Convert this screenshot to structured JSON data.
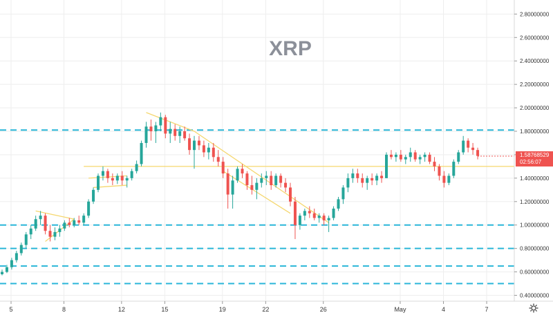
{
  "chart_data": {
    "type": "candlestick",
    "title": "XRP",
    "y_ticks": [
      "2.80000000",
      "2.60000000",
      "2.40000000",
      "2.20000000",
      "2.00000000",
      "1.80000000",
      "1.60000000",
      "1.40000000",
      "1.20000000",
      "1.00000000",
      "0.80000000",
      "0.60000000",
      "0.40000000"
    ],
    "ylim": [
      0.35,
      2.92
    ],
    "x_ticks": [
      "5",
      "8",
      "12",
      "15",
      "19",
      "22",
      "26",
      "May",
      "4",
      "7"
    ],
    "last_price": "1.58768529",
    "countdown": "02:56:07",
    "grid": true,
    "horizontal_levels": [
      1.81,
      1.0,
      0.8,
      0.65,
      0.5
    ],
    "horizontal_levels_color": "#29b6d8",
    "support_level": 1.5,
    "trendline_color": "#f5d76e",
    "up_color": "#26a69a",
    "down_color": "#ef5350",
    "price_label_color": "#ef5350",
    "series": [
      {
        "values": [
          [
            0.58,
            0.62,
            0.57,
            0.6
          ],
          [
            0.6,
            0.66,
            0.59,
            0.64
          ],
          [
            0.64,
            0.72,
            0.62,
            0.7
          ],
          [
            0.7,
            0.78,
            0.68,
            0.76
          ],
          [
            0.76,
            0.85,
            0.74,
            0.83
          ],
          [
            0.83,
            0.94,
            0.8,
            0.92
          ],
          [
            0.92,
            1.0,
            0.88,
            0.97
          ],
          [
            0.97,
            1.08,
            0.95,
            1.05
          ],
          [
            1.05,
            1.12,
            1.0,
            1.08
          ],
          [
            1.08,
            1.1,
            0.92,
            0.95
          ],
          [
            0.95,
            1.0,
            0.86,
            0.9
          ],
          [
            0.9,
            0.98,
            0.87,
            0.94
          ],
          [
            0.94,
            1.0,
            0.9,
            0.97
          ],
          [
            0.97,
            1.04,
            0.95,
            1.02
          ],
          [
            1.02,
            1.06,
            0.98,
            1.0
          ],
          [
            1.0,
            1.06,
            0.98,
            1.04
          ],
          [
            1.04,
            1.08,
            1.0,
            1.02
          ],
          [
            1.02,
            1.1,
            1.0,
            1.08
          ],
          [
            1.08,
            1.22,
            1.06,
            1.2
          ],
          [
            1.2,
            1.32,
            1.18,
            1.3
          ],
          [
            1.3,
            1.44,
            1.28,
            1.42
          ],
          [
            1.42,
            1.5,
            1.38,
            1.46
          ],
          [
            1.46,
            1.48,
            1.36,
            1.4
          ],
          [
            1.4,
            1.44,
            1.34,
            1.38
          ],
          [
            1.38,
            1.44,
            1.35,
            1.42
          ],
          [
            1.42,
            1.46,
            1.34,
            1.38
          ],
          [
            1.38,
            1.42,
            1.32,
            1.4
          ],
          [
            1.4,
            1.48,
            1.38,
            1.46
          ],
          [
            1.46,
            1.55,
            1.44,
            1.52
          ],
          [
            1.52,
            1.72,
            1.5,
            1.7
          ],
          [
            1.7,
            1.88,
            1.66,
            1.84
          ],
          [
            1.84,
            1.9,
            1.72,
            1.8
          ],
          [
            1.8,
            1.88,
            1.7,
            1.85
          ],
          [
            1.85,
            1.96,
            1.8,
            1.92
          ],
          [
            1.92,
            1.94,
            1.74,
            1.78
          ],
          [
            1.78,
            1.88,
            1.7,
            1.82
          ],
          [
            1.82,
            1.86,
            1.72,
            1.76
          ],
          [
            1.76,
            1.84,
            1.7,
            1.8
          ],
          [
            1.8,
            1.84,
            1.72,
            1.74
          ],
          [
            1.74,
            1.78,
            1.6,
            1.64
          ],
          [
            1.64,
            1.76,
            1.48,
            1.72
          ],
          [
            1.72,
            1.76,
            1.64,
            1.68
          ],
          [
            1.68,
            1.72,
            1.58,
            1.62
          ],
          [
            1.62,
            1.7,
            1.56,
            1.66
          ],
          [
            1.66,
            1.7,
            1.54,
            1.58
          ],
          [
            1.58,
            1.64,
            1.5,
            1.54
          ],
          [
            1.54,
            1.58,
            1.4,
            1.44
          ],
          [
            1.44,
            1.48,
            1.14,
            1.26
          ],
          [
            1.26,
            1.42,
            1.14,
            1.38
          ],
          [
            1.38,
            1.5,
            1.36,
            1.48
          ],
          [
            1.48,
            1.52,
            1.4,
            1.44
          ],
          [
            1.44,
            1.46,
            1.3,
            1.34
          ],
          [
            1.34,
            1.42,
            1.26,
            1.3
          ],
          [
            1.3,
            1.4,
            1.22,
            1.36
          ],
          [
            1.36,
            1.44,
            1.32,
            1.4
          ],
          [
            1.4,
            1.46,
            1.34,
            1.42
          ],
          [
            1.42,
            1.46,
            1.3,
            1.34
          ],
          [
            1.34,
            1.44,
            1.32,
            1.42
          ],
          [
            1.42,
            1.44,
            1.32,
            1.36
          ],
          [
            1.36,
            1.4,
            1.28,
            1.32
          ],
          [
            1.32,
            1.36,
            1.16,
            1.2
          ],
          [
            1.2,
            1.24,
            0.88,
            1.0
          ],
          [
            1.0,
            1.1,
            0.96,
            1.08
          ],
          [
            1.08,
            1.14,
            1.04,
            1.12
          ],
          [
            1.12,
            1.16,
            1.06,
            1.1
          ],
          [
            1.1,
            1.14,
            1.04,
            1.06
          ],
          [
            1.06,
            1.1,
            1.02,
            1.08
          ],
          [
            1.08,
            1.1,
            1.0,
            1.04
          ],
          [
            1.04,
            1.08,
            0.94,
            1.06
          ],
          [
            1.06,
            1.16,
            1.04,
            1.14
          ],
          [
            1.14,
            1.24,
            1.12,
            1.22
          ],
          [
            1.22,
            1.34,
            1.18,
            1.32
          ],
          [
            1.32,
            1.44,
            1.28,
            1.4
          ],
          [
            1.4,
            1.48,
            1.36,
            1.44
          ],
          [
            1.44,
            1.48,
            1.36,
            1.4
          ],
          [
            1.4,
            1.44,
            1.32,
            1.36
          ],
          [
            1.36,
            1.42,
            1.3,
            1.4
          ],
          [
            1.4,
            1.44,
            1.34,
            1.38
          ],
          [
            1.38,
            1.44,
            1.34,
            1.42
          ],
          [
            1.42,
            1.46,
            1.36,
            1.4
          ],
          [
            1.4,
            1.62,
            1.4,
            1.6
          ],
          [
            1.6,
            1.64,
            1.56,
            1.58
          ],
          [
            1.58,
            1.62,
            1.54,
            1.6
          ],
          [
            1.6,
            1.64,
            1.54,
            1.56
          ],
          [
            1.56,
            1.6,
            1.52,
            1.58
          ],
          [
            1.58,
            1.66,
            1.54,
            1.62
          ],
          [
            1.62,
            1.64,
            1.54,
            1.56
          ],
          [
            1.56,
            1.6,
            1.52,
            1.58
          ],
          [
            1.58,
            1.62,
            1.54,
            1.6
          ],
          [
            1.6,
            1.62,
            1.52,
            1.54
          ],
          [
            1.54,
            1.58,
            1.46,
            1.5
          ],
          [
            1.5,
            1.52,
            1.38,
            1.42
          ],
          [
            1.42,
            1.46,
            1.32,
            1.36
          ],
          [
            1.36,
            1.44,
            1.34,
            1.42
          ],
          [
            1.42,
            1.56,
            1.4,
            1.54
          ],
          [
            1.54,
            1.64,
            1.52,
            1.62
          ],
          [
            1.62,
            1.76,
            1.6,
            1.72
          ],
          [
            1.72,
            1.74,
            1.62,
            1.66
          ],
          [
            1.66,
            1.7,
            1.6,
            1.64
          ],
          [
            1.64,
            1.66,
            1.56,
            1.59
          ]
        ]
      }
    ]
  }
}
